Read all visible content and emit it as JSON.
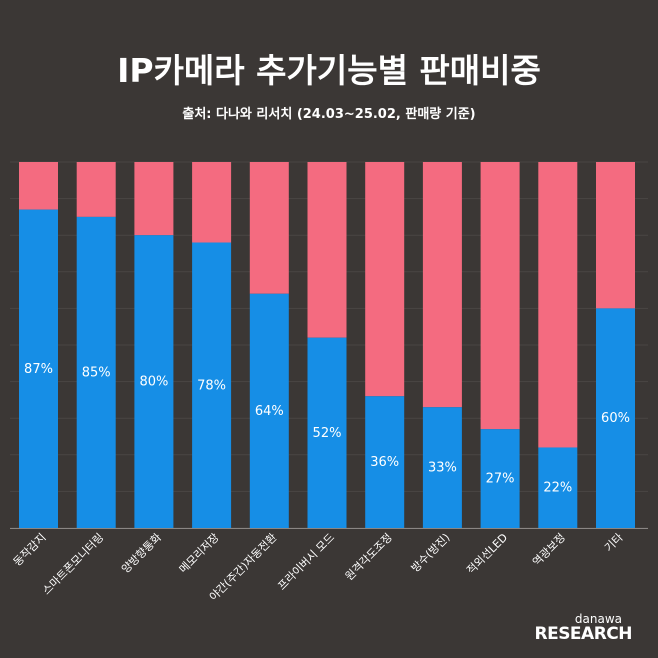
{
  "title": "IP카메라 추가기능별 판매비중",
  "subtitle": "출처: 다나와 리서치 (24.03~25.02, 판매량 기준)",
  "logo": {
    "top": "danawa",
    "bottom": "RESEARCH"
  },
  "colors": {
    "background": "#3b3735",
    "primary": "#168ee6",
    "remainder": "#f46b80"
  },
  "chart_data": {
    "type": "bar",
    "stacked": true,
    "ylim": [
      0,
      100
    ],
    "grid": true,
    "categories": [
      "동작감지",
      "스마트폰모니터링",
      "양방향통화",
      "메모리저장",
      "야간(주간)자동전환",
      "프라이버시 모드",
      "원격각도조정",
      "방수(방진)",
      "적외선LED",
      "역광보정",
      "기타"
    ],
    "values": [
      87,
      85,
      80,
      78,
      64,
      52,
      36,
      33,
      27,
      22,
      60
    ],
    "labels": [
      "87%",
      "85%",
      "80%",
      "78%",
      "64%",
      "52%",
      "36%",
      "33%",
      "27%",
      "22%",
      "60%"
    ]
  }
}
